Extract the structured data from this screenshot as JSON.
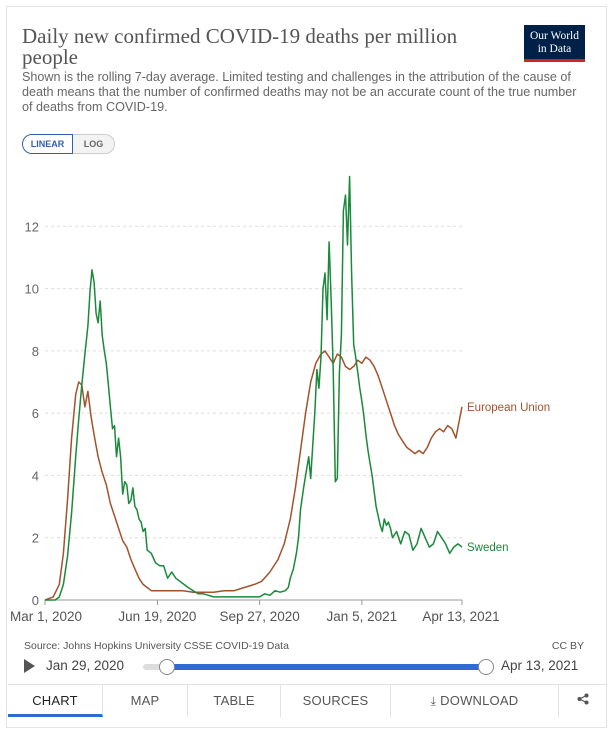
{
  "header": {
    "title": "Daily new confirmed COVID-19 deaths per million people",
    "subtitle": "Shown is the rolling 7-day average. Limited testing and challenges in the attribution of the cause of death means that the number of confirmed deaths may not be an accurate count of the true number of deaths from COVID-19.",
    "logo_line1": "Our World",
    "logo_line2": "in Data"
  },
  "scale": {
    "linear": "LINEAR",
    "log": "LOG",
    "selected": "LINEAR"
  },
  "colors": {
    "eu": "#a2532d",
    "sweden": "#1a8a3a",
    "grid": "#dddddd",
    "accent": "#2f6bd6",
    "logo_bg": "#002147",
    "logo_bar": "#ce261e"
  },
  "chart_data": {
    "type": "line",
    "title": "Daily new confirmed COVID-19 deaths per million people",
    "xlabel": "",
    "ylabel": "",
    "ylim": [
      0,
      14
    ],
    "y_ticks": [
      0,
      2,
      4,
      6,
      8,
      10,
      12
    ],
    "x_ticks": [
      "Mar 1, 2020",
      "Jun 19, 2020",
      "Sep 27, 2020",
      "Jan 5, 2021",
      "Apr 13, 2021"
    ],
    "x_tick_days": [
      0,
      110,
      210,
      310,
      408
    ],
    "x_unit": "days since Mar 1, 2020",
    "grid": "horizontal dashed",
    "series": [
      {
        "name": "European Union",
        "color": "#a2532d",
        "points": [
          [
            0,
            0
          ],
          [
            8,
            0.1
          ],
          [
            14,
            0.5
          ],
          [
            18,
            1.5
          ],
          [
            22,
            3.2
          ],
          [
            26,
            5.2
          ],
          [
            30,
            6.6
          ],
          [
            33,
            7.0
          ],
          [
            36,
            6.9
          ],
          [
            39,
            6.2
          ],
          [
            42,
            6.7
          ],
          [
            45,
            5.9
          ],
          [
            48,
            5.3
          ],
          [
            52,
            4.6
          ],
          [
            56,
            4.1
          ],
          [
            60,
            3.7
          ],
          [
            64,
            3.1
          ],
          [
            68,
            2.7
          ],
          [
            72,
            2.3
          ],
          [
            76,
            1.9
          ],
          [
            80,
            1.7
          ],
          [
            84,
            1.3
          ],
          [
            88,
            1.0
          ],
          [
            92,
            0.7
          ],
          [
            96,
            0.5
          ],
          [
            100,
            0.4
          ],
          [
            104,
            0.3
          ],
          [
            108,
            0.3
          ],
          [
            112,
            0.3
          ],
          [
            118,
            0.3
          ],
          [
            125,
            0.3
          ],
          [
            135,
            0.3
          ],
          [
            145,
            0.25
          ],
          [
            155,
            0.25
          ],
          [
            165,
            0.25
          ],
          [
            175,
            0.3
          ],
          [
            185,
            0.3
          ],
          [
            195,
            0.4
          ],
          [
            205,
            0.5
          ],
          [
            212,
            0.6
          ],
          [
            220,
            0.9
          ],
          [
            228,
            1.3
          ],
          [
            234,
            1.8
          ],
          [
            240,
            2.6
          ],
          [
            245,
            3.6
          ],
          [
            250,
            4.8
          ],
          [
            255,
            6.0
          ],
          [
            260,
            7.0
          ],
          [
            265,
            7.6
          ],
          [
            270,
            7.9
          ],
          [
            274,
            8.0
          ],
          [
            278,
            7.8
          ],
          [
            282,
            7.6
          ],
          [
            286,
            7.9
          ],
          [
            290,
            7.8
          ],
          [
            294,
            7.5
          ],
          [
            298,
            7.4
          ],
          [
            302,
            7.5
          ],
          [
            306,
            7.7
          ],
          [
            310,
            7.6
          ],
          [
            314,
            7.8
          ],
          [
            318,
            7.7
          ],
          [
            322,
            7.5
          ],
          [
            326,
            7.2
          ],
          [
            330,
            6.8
          ],
          [
            334,
            6.4
          ],
          [
            338,
            6.0
          ],
          [
            342,
            5.6
          ],
          [
            346,
            5.3
          ],
          [
            350,
            5.1
          ],
          [
            354,
            4.9
          ],
          [
            358,
            4.8
          ],
          [
            362,
            4.7
          ],
          [
            366,
            4.8
          ],
          [
            370,
            4.7
          ],
          [
            374,
            4.9
          ],
          [
            378,
            5.2
          ],
          [
            382,
            5.4
          ],
          [
            386,
            5.5
          ],
          [
            390,
            5.4
          ],
          [
            394,
            5.6
          ],
          [
            398,
            5.5
          ],
          [
            402,
            5.2
          ],
          [
            405,
            5.7
          ],
          [
            408,
            6.2
          ]
        ]
      },
      {
        "name": "Sweden",
        "color": "#1a8a3a",
        "points": [
          [
            0,
            0
          ],
          [
            10,
            0
          ],
          [
            14,
            0.1
          ],
          [
            18,
            0.5
          ],
          [
            22,
            1.4
          ],
          [
            26,
            2.8
          ],
          [
            30,
            4.6
          ],
          [
            33,
            5.8
          ],
          [
            36,
            6.9
          ],
          [
            39,
            7.9
          ],
          [
            42,
            8.8
          ],
          [
            44,
            9.9
          ],
          [
            46,
            10.6
          ],
          [
            48,
            10.2
          ],
          [
            50,
            9.2
          ],
          [
            52,
            8.9
          ],
          [
            54,
            9.6
          ],
          [
            56,
            8.5
          ],
          [
            58,
            8.0
          ],
          [
            60,
            7.6
          ],
          [
            62,
            6.9
          ],
          [
            64,
            6.2
          ],
          [
            66,
            5.5
          ],
          [
            68,
            5.6
          ],
          [
            70,
            4.6
          ],
          [
            72,
            5.2
          ],
          [
            74,
            4.6
          ],
          [
            76,
            3.4
          ],
          [
            78,
            3.8
          ],
          [
            80,
            3.7
          ],
          [
            82,
            3.1
          ],
          [
            84,
            3.2
          ],
          [
            86,
            3.6
          ],
          [
            88,
            3.0
          ],
          [
            90,
            2.9
          ],
          [
            92,
            2.6
          ],
          [
            94,
            2.5
          ],
          [
            96,
            2.2
          ],
          [
            98,
            2.3
          ],
          [
            100,
            1.6
          ],
          [
            104,
            1.5
          ],
          [
            108,
            1.2
          ],
          [
            112,
            1.1
          ],
          [
            116,
            1.1
          ],
          [
            120,
            0.7
          ],
          [
            124,
            0.9
          ],
          [
            128,
            0.7
          ],
          [
            132,
            0.6
          ],
          [
            136,
            0.5
          ],
          [
            140,
            0.4
          ],
          [
            145,
            0.3
          ],
          [
            150,
            0.2
          ],
          [
            155,
            0.2
          ],
          [
            160,
            0.15
          ],
          [
            165,
            0.1
          ],
          [
            170,
            0.1
          ],
          [
            180,
            0.1
          ],
          [
            190,
            0.1
          ],
          [
            200,
            0.1
          ],
          [
            210,
            0.1
          ],
          [
            215,
            0.2
          ],
          [
            220,
            0.15
          ],
          [
            225,
            0.3
          ],
          [
            230,
            0.25
          ],
          [
            235,
            0.3
          ],
          [
            238,
            0.4
          ],
          [
            240,
            0.7
          ],
          [
            243,
            1.0
          ],
          [
            246,
            1.5
          ],
          [
            248,
            2.0
          ],
          [
            250,
            2.9
          ],
          [
            253,
            3.6
          ],
          [
            256,
            4.2
          ],
          [
            258,
            4.6
          ],
          [
            260,
            3.9
          ],
          [
            262,
            5.0
          ],
          [
            264,
            6.0
          ],
          [
            266,
            7.4
          ],
          [
            268,
            6.8
          ],
          [
            270,
            7.8
          ],
          [
            272,
            10.0
          ],
          [
            274,
            10.5
          ],
          [
            276,
            9.0
          ],
          [
            278,
            11.5
          ],
          [
            280,
            9.6
          ],
          [
            282,
            7.4
          ],
          [
            284,
            3.8
          ],
          [
            286,
            3.9
          ],
          [
            288,
            7.3
          ],
          [
            290,
            8.5
          ],
          [
            292,
            12.5
          ],
          [
            294,
            13.0
          ],
          [
            296,
            11.4
          ],
          [
            298,
            13.6
          ],
          [
            300,
            10.5
          ],
          [
            302,
            8.2
          ],
          [
            304,
            7.8
          ],
          [
            306,
            7.3
          ],
          [
            308,
            6.8
          ],
          [
            310,
            6.4
          ],
          [
            312,
            5.9
          ],
          [
            314,
            5.3
          ],
          [
            316,
            4.8
          ],
          [
            318,
            4.4
          ],
          [
            320,
            4.0
          ],
          [
            322,
            3.5
          ],
          [
            324,
            3.0
          ],
          [
            326,
            2.7
          ],
          [
            328,
            2.4
          ],
          [
            330,
            2.2
          ],
          [
            332,
            2.6
          ],
          [
            334,
            2.4
          ],
          [
            336,
            2.5
          ],
          [
            338,
            2.3
          ],
          [
            340,
            2.0
          ],
          [
            344,
            2.2
          ],
          [
            348,
            1.8
          ],
          [
            352,
            2.2
          ],
          [
            356,
            2.1
          ],
          [
            360,
            1.6
          ],
          [
            364,
            1.8
          ],
          [
            368,
            2.3
          ],
          [
            372,
            2.0
          ],
          [
            376,
            1.7
          ],
          [
            380,
            1.8
          ],
          [
            384,
            2.2
          ],
          [
            388,
            2.0
          ],
          [
            392,
            1.8
          ],
          [
            396,
            1.5
          ],
          [
            400,
            1.7
          ],
          [
            404,
            1.8
          ],
          [
            408,
            1.7
          ]
        ]
      }
    ]
  },
  "footer": {
    "source": "Source: Johns Hopkins University CSSE COVID-19 Data",
    "license": "CC BY"
  },
  "timeline": {
    "start_label": "Jan 29, 2020",
    "end_label": "Apr 13, 2021"
  },
  "tabs": [
    {
      "label": "CHART"
    },
    {
      "label": "MAP"
    },
    {
      "label": "TABLE"
    },
    {
      "label": "SOURCES"
    },
    {
      "label": "DOWNLOAD"
    }
  ]
}
